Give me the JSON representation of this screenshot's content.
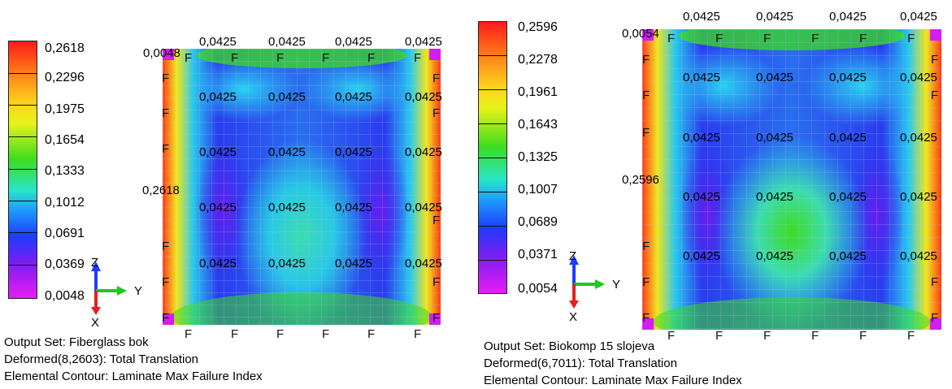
{
  "panels": [
    {
      "legend": [
        "0,2618",
        "0,2296",
        "0,1975",
        "0,1654",
        "0,1333",
        "0,1012",
        "0,0691",
        "0,0369",
        "0,0048"
      ],
      "min_label": "0,0048",
      "max_label": "0,2618",
      "value_label": "0,0425",
      "force_mark": "F",
      "axes": {
        "z": "Z",
        "y": "Y",
        "x": "X"
      },
      "caption": {
        "output_set": "Output Set: Fiberglass bok",
        "deformed": "Deformed(8,2603): Total Translation",
        "contour": "Elemental Contour: Laminate Max Failure Index"
      }
    },
    {
      "legend": [
        "0,2596",
        "0,2278",
        "0,1961",
        "0,1643",
        "0,1325",
        "0,1007",
        "0,0689",
        "0,0371",
        "0,0054"
      ],
      "min_label": "0,0054",
      "max_label": "0,2596",
      "value_label": "0,0425",
      "force_mark": "F",
      "axes": {
        "z": "Z",
        "y": "Y",
        "x": "X"
      },
      "caption": {
        "output_set": "Output Set: Biokomp 15 slojeva",
        "deformed": "Deformed(6,7011): Total Translation",
        "contour": "Elemental Contour: Laminate Max Failure Index"
      }
    }
  ],
  "colors": {
    "red": "#ff2a1a",
    "orange": "#ff9a1a",
    "yellow": "#f2f21a",
    "green": "#3cdc1e",
    "cyan": "#28e6e6",
    "blue": "#1e5aff",
    "magenta": "#e61ef2"
  }
}
